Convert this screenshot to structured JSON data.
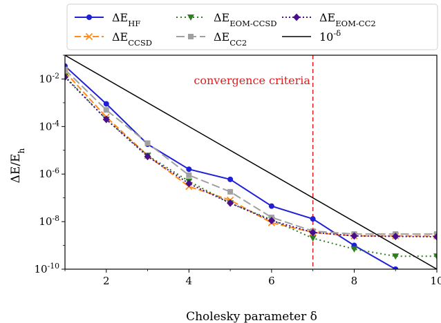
{
  "chart_data": {
    "type": "line",
    "xlabel": "Cholesky parameter δ",
    "ylabel": "ΔE/E_h",
    "xlim": [
      1,
      10
    ],
    "ylim": [
      1e-10,
      0.1
    ],
    "yscale": "log",
    "grid": false,
    "legend_placement": "top (above plot, 4 columns)",
    "x_ticks": [
      2,
      4,
      6,
      8,
      10
    ],
    "y_ticks": [
      {
        "value": 0.01,
        "label": "10^-2"
      },
      {
        "value": 0.0001,
        "label": "10^-4"
      },
      {
        "value": 1e-06,
        "label": "10^-6"
      },
      {
        "value": 1e-08,
        "label": "10^-8"
      },
      {
        "value": 1e-10,
        "label": "10^-10"
      }
    ],
    "annotation": {
      "text": "convergence criteria",
      "x": 7,
      "color": "#e41a1c"
    },
    "series": [
      {
        "name": "ΔE_HF",
        "color": "#1f1fd6",
        "dash": "",
        "marker": "circle",
        "x": [
          1,
          2,
          3,
          4,
          5,
          6,
          7,
          8,
          9,
          10
        ],
        "y": [
          0.035,
          0.0009,
          1.8e-05,
          1.6e-06,
          6e-07,
          4.5e-08,
          1.3e-08,
          1e-09,
          1e-10,
          1e-11
        ]
      },
      {
        "name": "ΔE_CCSD",
        "color": "#ff8c1a",
        "dash": "9,4",
        "marker": "x",
        "x": [
          1,
          2,
          3,
          4,
          5,
          6,
          7,
          8,
          9,
          10
        ],
        "y": [
          0.02,
          0.00025,
          6e-06,
          3e-07,
          8e-08,
          9e-09,
          3.5e-09,
          2.5e-09,
          2.5e-09,
          2.5e-09
        ]
      },
      {
        "name": "ΔE_EOM-CCSD",
        "color": "#2e7d1e",
        "dash": "2,4",
        "marker": "triangle-down",
        "x": [
          1,
          2,
          3,
          4,
          5,
          6,
          7,
          8,
          9,
          10
        ],
        "y": [
          0.013,
          0.0002,
          6e-06,
          5e-07,
          6e-08,
          1.2e-08,
          2e-09,
          7e-10,
          3.5e-10,
          3.5e-10
        ]
      },
      {
        "name": "ΔE_CC2",
        "color": "#a0a0a0",
        "dash": "12,5",
        "marker": "square",
        "x": [
          1,
          2,
          3,
          4,
          5,
          6,
          7,
          8,
          9,
          10
        ],
        "y": [
          0.025,
          0.0005,
          2e-05,
          9e-07,
          1.8e-07,
          1.5e-08,
          4e-09,
          3e-09,
          3e-09,
          3e-09
        ]
      },
      {
        "name": "ΔE_EOM-CC2",
        "color": "#4b0e8a",
        "dash": "2,3",
        "marker": "diamond",
        "x": [
          1,
          2,
          3,
          4,
          5,
          6,
          7,
          8,
          9,
          10
        ],
        "y": [
          0.012,
          0.0002,
          5.5e-06,
          4e-07,
          6e-08,
          1.1e-08,
          3.5e-09,
          2.5e-09,
          2.4e-09,
          2.3e-09
        ]
      },
      {
        "name": "10^-δ",
        "color": "#000000",
        "dash": "",
        "marker": "none",
        "x": [
          1,
          10
        ],
        "y": [
          0.1,
          1e-10
        ]
      }
    ]
  }
}
